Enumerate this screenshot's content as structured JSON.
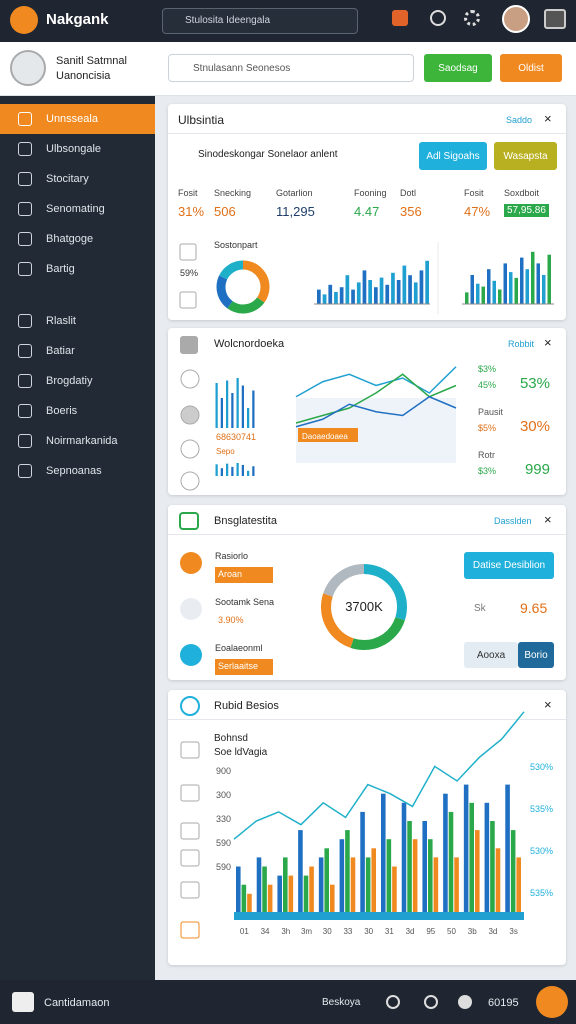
{
  "header": {
    "brand": "Nakgank",
    "search": "Stulosita Ideengala"
  },
  "sidebar": {
    "name": "Sanitl Satmnal",
    "role": "Uanoncisia",
    "menu": [
      "Unnsseala",
      "Ulbsongale",
      "Stocitary",
      "Senomating",
      "Bhatgoge",
      "Bartig",
      "Rlaslit",
      "Batiar",
      "Brogdatiy",
      "Boeris",
      "Noirmarkanida",
      "Sepnoanas"
    ]
  },
  "toolbar": {
    "search": "Stnulasann Seonesos",
    "buttons": [
      "Saodsag",
      "Oldist"
    ]
  },
  "card1": {
    "title": "Ulbsintia",
    "link": "Saddo",
    "search": "Sinodeskongar Sonelaor anlent",
    "buttons": [
      "Adl Sigoahs",
      "Wasapsta"
    ],
    "stats": [
      {
        "label": "Fosit",
        "value": "31%"
      },
      {
        "label": "Snecking",
        "value": "506"
      },
      {
        "label": "Gotarlion",
        "value": "11,295"
      },
      {
        "label": "Fooning",
        "value": "4.47"
      },
      {
        "label": "Dotl",
        "value": "356"
      },
      {
        "label": "Fosit",
        "value": "47%"
      },
      {
        "label": "Soxdboit",
        "value": "57,95.86"
      }
    ],
    "donut": {
      "label": "Sostonpart",
      "pct": "59%",
      "values": [
        35,
        25,
        22,
        18
      ],
      "colors": [
        "#f0891f",
        "#2aa84a",
        "#1f6fc2",
        "#1fb0c9"
      ]
    },
    "bars1": {
      "ylim": [
        0,
        100
      ],
      "values": [
        30,
        20,
        40,
        25,
        35,
        60,
        30,
        45,
        70,
        50,
        35,
        55,
        40,
        65,
        50,
        80,
        60,
        45,
        70,
        90
      ],
      "colors": [
        "#1f6fc2",
        "#1fa0d0"
      ]
    },
    "bars2": {
      "ylim": [
        0,
        100
      ],
      "values": [
        20,
        50,
        35,
        30,
        60,
        40,
        25,
        70,
        55,
        45,
        80,
        60,
        90,
        70,
        50,
        85
      ],
      "colors": [
        "#2aa84a",
        "#1f6fc2",
        "#1fa0d0"
      ]
    }
  },
  "card2": {
    "title": "Wolcnordoeka",
    "link": "Robbit",
    "badge": "Daoaedoaea",
    "barLabel": "68630741",
    "barSub": "Sepo",
    "bars": {
      "ylim": [
        0,
        100
      ],
      "values": [
        90,
        60,
        95,
        70,
        100,
        85,
        40,
        75
      ],
      "colors": [
        "#1f9fd0",
        "#1f6fc2"
      ]
    },
    "line": {
      "ylim": [
        0,
        100
      ],
      "series": [
        {
          "color": "#1fa0d0",
          "values": [
            55,
            75,
            85,
            70,
            80,
            60,
            95
          ]
        },
        {
          "color": "#2aa84a",
          "values": [
            20,
            30,
            40,
            60,
            85,
            55,
            70
          ]
        },
        {
          "color": "#1f6fc2",
          "values": [
            15,
            25,
            45,
            35,
            30,
            55,
            40
          ]
        }
      ]
    },
    "stats": [
      {
        "small": "$3%",
        "sub": "45%",
        "big": "53%"
      },
      {
        "small": "Pausit",
        "sub": "$5%",
        "big": "30%"
      },
      {
        "small": "Rotr",
        "sub": "$3%",
        "big": "999"
      }
    ]
  },
  "card3": {
    "title": "Bnsglatestita",
    "link": "Dasslden",
    "items": [
      {
        "title": "Rasiorlo",
        "sub": "Aroan"
      },
      {
        "title": "Sootamk Sena",
        "sub": "3.90%"
      },
      {
        "title": "Eoalaeonml",
        "sub": "Serlaaitse"
      }
    ],
    "donut": {
      "center": "3700K",
      "values": [
        30,
        25,
        25,
        20
      ],
      "colors": [
        "#1fb0c9",
        "#2aa84a",
        "#f0891f",
        "#b0b8c0"
      ]
    },
    "button": "Datise Desiblion",
    "statLabel": "Sk",
    "statValue": "9.65",
    "buttons": [
      "Aooxa",
      "Borio"
    ]
  },
  "card4": {
    "title": "Rubid Besios",
    "legend": [
      "Bohnsd",
      "Soe ldVagia"
    ],
    "yLabels": [
      "900",
      "300",
      "330",
      "590",
      "590"
    ],
    "right": [
      "530%",
      "535%",
      "530%",
      "535%"
    ],
    "xLabels": [
      "01",
      "34",
      "3h",
      "3m",
      "30",
      "33",
      "30",
      "31",
      "3d",
      "95",
      "50",
      "3b",
      "3d",
      "3s"
    ],
    "ylim": [
      0,
      100
    ],
    "series": [
      {
        "color": "#1f6fc2",
        "values": [
          25,
          30,
          20,
          45,
          30,
          40,
          55,
          65,
          60,
          50,
          65,
          70,
          60,
          70
        ]
      },
      {
        "color": "#2aa84a",
        "values": [
          15,
          25,
          30,
          20,
          35,
          45,
          30,
          40,
          50,
          40,
          55,
          60,
          50,
          45
        ]
      },
      {
        "color": "#f0891f",
        "values": [
          10,
          15,
          20,
          25,
          15,
          30,
          35,
          25,
          40,
          30,
          30,
          45,
          35,
          30
        ]
      }
    ],
    "line": {
      "color": "#1fb0c9",
      "values": [
        40,
        50,
        55,
        48,
        60,
        52,
        70,
        65,
        58,
        80,
        72,
        85,
        95,
        110
      ]
    }
  },
  "footer": {
    "left": "Cantidamaon",
    "right": "Beskoya",
    "count": "60195"
  }
}
